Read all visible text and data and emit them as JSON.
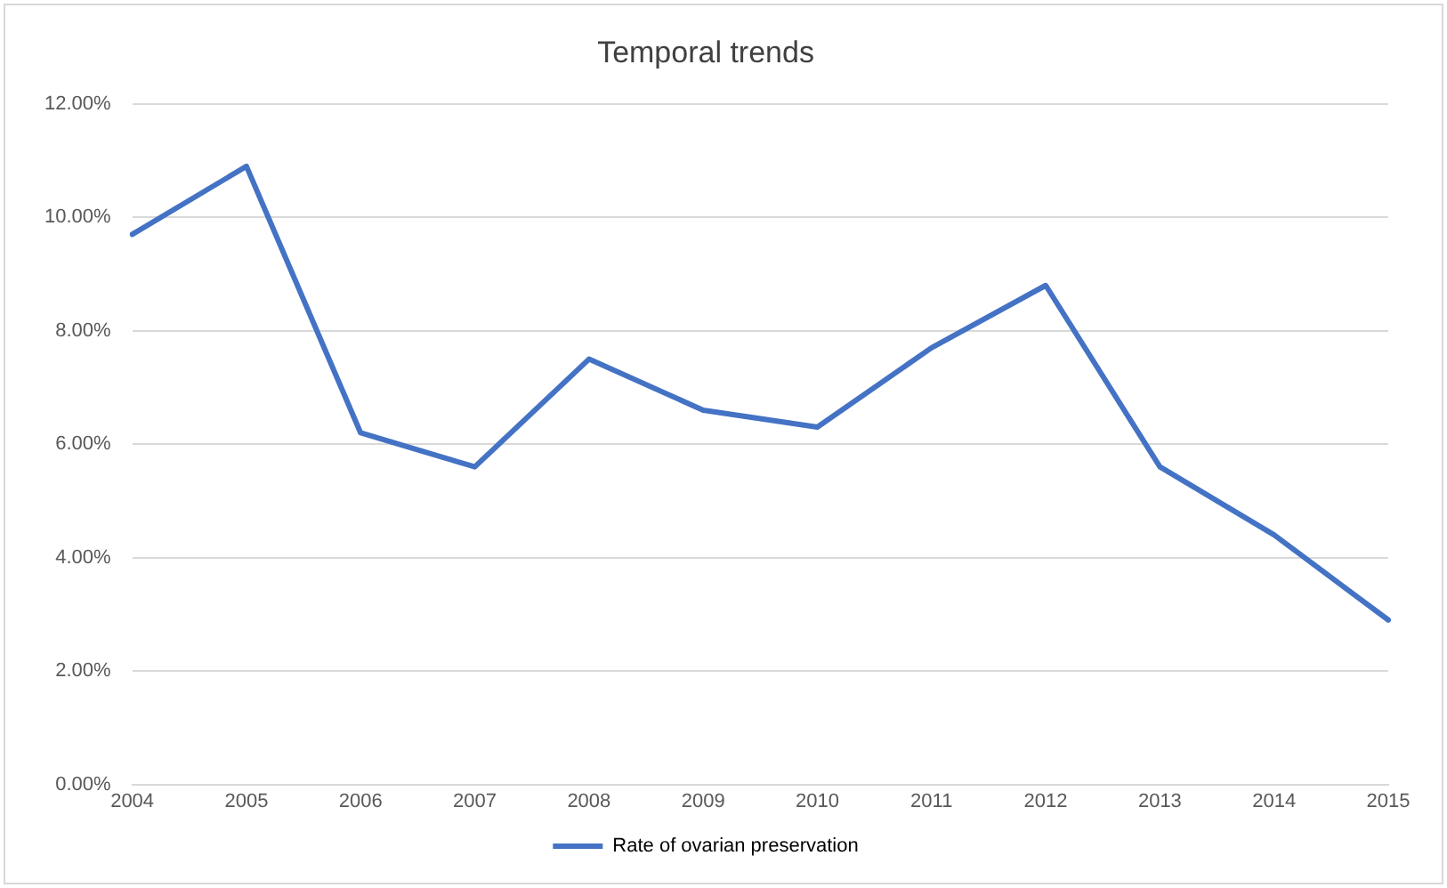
{
  "chart_data": {
    "type": "line",
    "title": "Temporal trends",
    "categories": [
      "2004",
      "2005",
      "2006",
      "2007",
      "2008",
      "2009",
      "2010",
      "2011",
      "2012",
      "2013",
      "2014",
      "2015"
    ],
    "series": [
      {
        "name": "Rate of ovarian preservation",
        "color": "#4472c4",
        "values": [
          9.7,
          10.9,
          6.2,
          5.6,
          7.5,
          6.6,
          6.3,
          7.7,
          8.8,
          5.6,
          4.4,
          2.9
        ]
      }
    ],
    "ylim": [
      0,
      12
    ],
    "yticks": [
      {
        "value": 0,
        "label": "0.00%"
      },
      {
        "value": 2,
        "label": "2.00%"
      },
      {
        "value": 4,
        "label": "4.00%"
      },
      {
        "value": 6,
        "label": "6.00%"
      },
      {
        "value": 8,
        "label": "8.00%"
      },
      {
        "value": 10,
        "label": "10.00%"
      },
      {
        "value": 12,
        "label": "12.00%"
      }
    ],
    "grid": "y",
    "legend": "bottom",
    "marker": "none",
    "line_style": "solid"
  }
}
